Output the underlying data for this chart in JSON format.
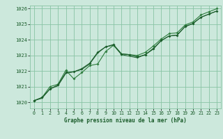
{
  "title": "Graphe pression niveau de la mer (hPa)",
  "background_color": "#cce8dc",
  "grid_color": "#88c4a4",
  "line_color_dark": "#1a5c2a",
  "line_color_mid": "#2e7d3e",
  "xlim": [
    -0.5,
    23.5
  ],
  "ylim": [
    1019.6,
    1026.2
  ],
  "yticks": [
    1020,
    1021,
    1022,
    1023,
    1024,
    1025,
    1026
  ],
  "xticks": [
    0,
    1,
    2,
    3,
    4,
    5,
    6,
    7,
    8,
    9,
    10,
    11,
    12,
    13,
    14,
    15,
    16,
    17,
    18,
    19,
    20,
    21,
    22,
    23
  ],
  "series1": [
    1020.1,
    1020.3,
    1020.85,
    1021.1,
    1021.9,
    1021.95,
    1022.15,
    1022.5,
    1023.2,
    1023.55,
    1023.7,
    1023.1,
    1023.05,
    1022.9,
    1023.05,
    1023.45,
    1023.95,
    1024.25,
    1024.3,
    1024.85,
    1025.05,
    1025.45,
    1025.65,
    1025.85
  ],
  "series2": [
    1020.1,
    1020.3,
    1021.0,
    1021.15,
    1022.05,
    1021.5,
    1021.9,
    1022.35,
    1022.45,
    1023.25,
    1023.65,
    1023.1,
    1023.05,
    1023.0,
    1023.2,
    1023.6,
    1024.05,
    1024.4,
    1024.45,
    1024.95,
    1025.15,
    1025.6,
    1025.8,
    1026.0
  ],
  "series3": [
    1020.1,
    1020.25,
    1020.85,
    1021.05,
    1021.85,
    1021.95,
    1022.1,
    1022.45,
    1023.15,
    1023.55,
    1023.65,
    1023.05,
    1022.95,
    1022.85,
    1023.05,
    1023.4,
    1023.95,
    1024.25,
    1024.3,
    1024.85,
    1025.05,
    1025.45,
    1025.65,
    1025.85
  ]
}
